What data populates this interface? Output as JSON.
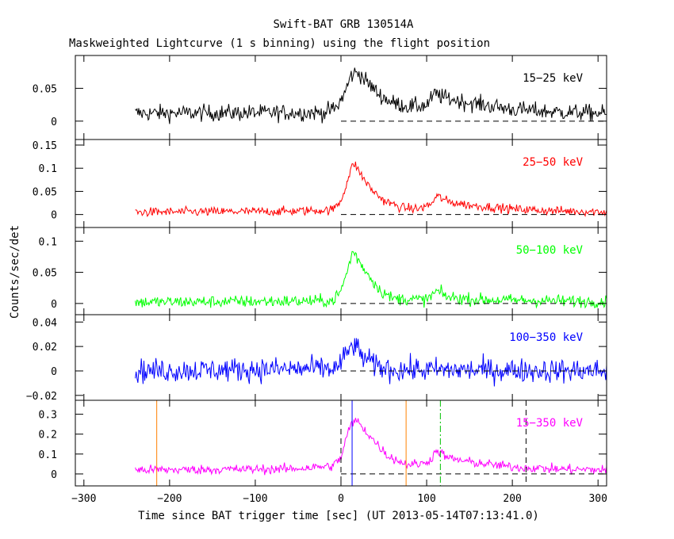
{
  "title": "Swift-BAT GRB 130514A",
  "subtitle": "Maskweighted Lightcurve (1 s binning) using the flight position",
  "chart_data": {
    "type": "line",
    "xlabel": "Time since BAT trigger time [sec] (UT 2013-05-14T07:13:41.0)",
    "ylabel": "Counts/sec/det",
    "xlim": [
      -310,
      310
    ],
    "xticks": [
      -300,
      -200,
      -100,
      0,
      100,
      200,
      300
    ],
    "data_start": -240,
    "panels": [
      {
        "band": "15−25 keV",
        "color": "#000000",
        "ylim": [
          -0.028,
          0.1
        ],
        "yticks": [
          0,
          0.05
        ],
        "yticklabels": [
          "0",
          "0.05"
        ],
        "baseline": 0.012,
        "noise": 0.009,
        "profile": [
          [
            -240,
            0.012
          ],
          [
            -20,
            0.013
          ],
          [
            -5,
            0.02
          ],
          [
            5,
            0.045
          ],
          [
            12,
            0.07
          ],
          [
            20,
            0.075
          ],
          [
            30,
            0.06
          ],
          [
            45,
            0.04
          ],
          [
            60,
            0.028
          ],
          [
            80,
            0.022
          ],
          [
            100,
            0.024
          ],
          [
            110,
            0.042
          ],
          [
            120,
            0.036
          ],
          [
            150,
            0.028
          ],
          [
            200,
            0.018
          ],
          [
            250,
            0.014
          ],
          [
            310,
            0.012
          ]
        ]
      },
      {
        "band": "25−50 keV",
        "color": "#ff0000",
        "ylim": [
          -0.028,
          0.162
        ],
        "yticks": [
          0,
          0.05,
          0.1,
          0.15
        ],
        "yticklabels": [
          "0",
          "0.05",
          "0.1",
          "0.15"
        ],
        "baseline": 0.005,
        "noise": 0.007,
        "profile": [
          [
            -240,
            0.005
          ],
          [
            -60,
            0.007
          ],
          [
            -10,
            0.01
          ],
          [
            0,
            0.03
          ],
          [
            8,
            0.075
          ],
          [
            12,
            0.1
          ],
          [
            16,
            0.11
          ],
          [
            22,
            0.09
          ],
          [
            35,
            0.055
          ],
          [
            50,
            0.03
          ],
          [
            70,
            0.015
          ],
          [
            90,
            0.012
          ],
          [
            105,
            0.022
          ],
          [
            112,
            0.04
          ],
          [
            125,
            0.028
          ],
          [
            150,
            0.02
          ],
          [
            200,
            0.012
          ],
          [
            250,
            0.008
          ],
          [
            310,
            0.006
          ]
        ]
      },
      {
        "band": "50−100 keV",
        "color": "#00ff00",
        "ylim": [
          -0.018,
          0.122
        ],
        "yticks": [
          0,
          0.05,
          0.1
        ],
        "yticklabels": [
          "0",
          "0.05",
          "0.1"
        ],
        "baseline": 0.002,
        "noise": 0.007,
        "profile": [
          [
            -240,
            0.002
          ],
          [
            -10,
            0.004
          ],
          [
            0,
            0.02
          ],
          [
            8,
            0.055
          ],
          [
            14,
            0.085
          ],
          [
            20,
            0.07
          ],
          [
            30,
            0.05
          ],
          [
            45,
            0.022
          ],
          [
            60,
            0.008
          ],
          [
            100,
            0.006
          ],
          [
            112,
            0.02
          ],
          [
            125,
            0.01
          ],
          [
            160,
            0.006
          ],
          [
            310,
            0.003
          ]
        ]
      },
      {
        "band": "100−350 keV",
        "color": "#0000ff",
        "ylim": [
          -0.024,
          0.046
        ],
        "yticks": [
          -0.02,
          0,
          0.02,
          0.04
        ],
        "yticklabels": [
          "−0.02",
          "0",
          "0.02",
          "0.04"
        ],
        "baseline": 0.0,
        "noise": 0.007,
        "profile": [
          [
            -240,
            0
          ],
          [
            -5,
            0.002
          ],
          [
            5,
            0.012
          ],
          [
            14,
            0.022
          ],
          [
            25,
            0.012
          ],
          [
            40,
            0.004
          ],
          [
            60,
            0.001
          ],
          [
            310,
            0
          ]
        ]
      },
      {
        "band": "15−350 keV",
        "color": "#ff00ff",
        "ylim": [
          -0.06,
          0.37
        ],
        "yticks": [
          0,
          0.1,
          0.2,
          0.3
        ],
        "yticklabels": [
          "0",
          "0.1",
          "0.2",
          "0.3"
        ],
        "baseline": 0.02,
        "noise": 0.017,
        "profile": [
          [
            -240,
            0.02
          ],
          [
            -60,
            0.025
          ],
          [
            -10,
            0.04
          ],
          [
            0,
            0.08
          ],
          [
            6,
            0.18
          ],
          [
            12,
            0.25
          ],
          [
            18,
            0.27
          ],
          [
            26,
            0.23
          ],
          [
            40,
            0.16
          ],
          [
            55,
            0.09
          ],
          [
            75,
            0.05
          ],
          [
            95,
            0.05
          ],
          [
            105,
            0.075
          ],
          [
            112,
            0.12
          ],
          [
            125,
            0.08
          ],
          [
            150,
            0.06
          ],
          [
            200,
            0.035
          ],
          [
            250,
            0.025
          ],
          [
            310,
            0.02
          ]
        ],
        "markers": [
          {
            "x": -215,
            "color": "#ff8000",
            "style": "solid"
          },
          {
            "x": 0,
            "color": "#000000",
            "style": "dashed"
          },
          {
            "x": 13,
            "color": "#0000ff",
            "style": "solid"
          },
          {
            "x": 76,
            "color": "#ff8000",
            "style": "solid"
          },
          {
            "x": 116,
            "color": "#00c000",
            "style": "dashdot"
          },
          {
            "x": 216,
            "color": "#000000",
            "style": "dashed"
          }
        ]
      }
    ]
  }
}
